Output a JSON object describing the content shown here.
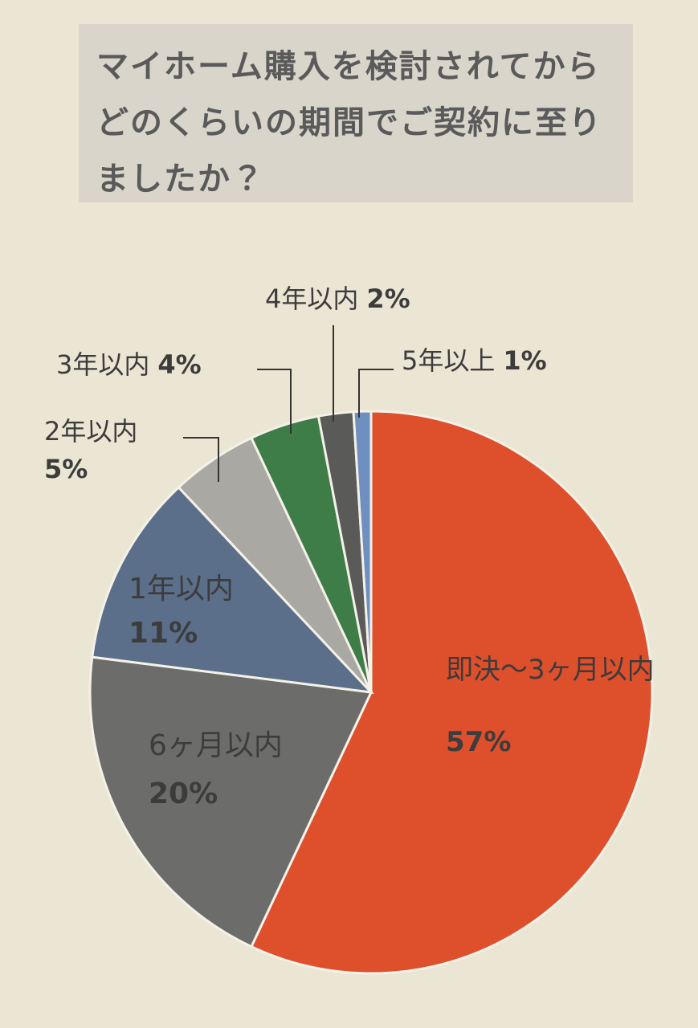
{
  "chart_data": {
    "type": "pie",
    "title": "マイホーム購入を検討されてからどのくらいの期間でご契約に至りましたか？",
    "categories": [
      "即決〜3ヶ月以内",
      "6ヶ月以内",
      "1年以内",
      "2年以内",
      "3年以内",
      "4年以内",
      "5年以上"
    ],
    "values": [
      57,
      20,
      11,
      5,
      4,
      2,
      1
    ],
    "value_labels": [
      "57%",
      "20%",
      "11%",
      "5%",
      "4%",
      "2%",
      "1%"
    ],
    "colors": [
      "#de4f2c",
      "#6c6c6a",
      "#5b6e8a",
      "#a9a8a3",
      "#3e7d48",
      "#5a5a58",
      "#6f8fc0"
    ]
  }
}
